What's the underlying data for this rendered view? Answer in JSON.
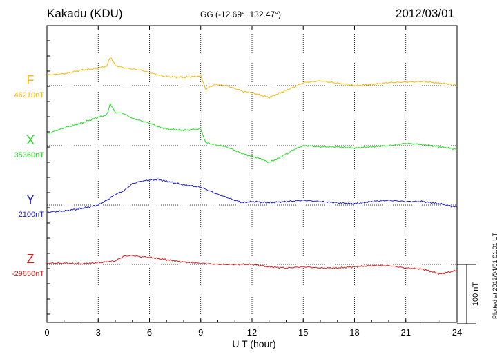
{
  "header": {
    "station": "Kakadu (KDU)",
    "coords": "GG (-12.69°, 132.47°)",
    "date": "2012/03/01"
  },
  "footer": {
    "plotted": "Plotted at 2012/04/01 01:01 UT"
  },
  "chart_data": {
    "type": "line",
    "title": "Kakadu (KDU)",
    "xlabel": "U T (hour)",
    "xlim": [
      0,
      24
    ],
    "xticks": [
      "0",
      "3",
      "6",
      "9",
      "12",
      "15",
      "18",
      "21",
      "24"
    ],
    "grid": true,
    "scale_bar": {
      "label": "100 nT",
      "value": 100
    },
    "series": [
      {
        "name": "F",
        "baseline_label": "46210nT",
        "color": "#f5b50a",
        "points": [
          [
            0,
            18
          ],
          [
            1,
            20
          ],
          [
            2,
            26
          ],
          [
            3,
            29
          ],
          [
            3.5,
            33
          ],
          [
            3.7,
            48
          ],
          [
            4,
            34
          ],
          [
            4.5,
            30
          ],
          [
            5,
            28
          ],
          [
            5.5,
            26
          ],
          [
            6,
            22
          ],
          [
            6.5,
            18
          ],
          [
            7,
            15
          ],
          [
            8,
            14
          ],
          [
            9,
            16
          ],
          [
            9.3,
            -6
          ],
          [
            9.8,
            2
          ],
          [
            10.5,
            0
          ],
          [
            11,
            -5
          ],
          [
            11.5,
            -10
          ],
          [
            12,
            -12
          ],
          [
            12.5,
            -16
          ],
          [
            13,
            -20
          ],
          [
            13.5,
            -14
          ],
          [
            14,
            -8
          ],
          [
            14.5,
            -2
          ],
          [
            15,
            5
          ],
          [
            16,
            8
          ],
          [
            17,
            4
          ],
          [
            18,
            0
          ],
          [
            19,
            2
          ],
          [
            20,
            5
          ],
          [
            21,
            6
          ],
          [
            22,
            7
          ],
          [
            23,
            4
          ],
          [
            23.8,
            2
          ],
          [
            24,
            0
          ]
        ]
      },
      {
        "name": "X",
        "baseline_label": "35360nT",
        "color": "#22dd22",
        "points": [
          [
            0,
            20
          ],
          [
            1,
            30
          ],
          [
            2,
            38
          ],
          [
            3,
            48
          ],
          [
            3.5,
            52
          ],
          [
            3.7,
            70
          ],
          [
            4,
            56
          ],
          [
            4.5,
            54
          ],
          [
            5,
            46
          ],
          [
            5.5,
            42
          ],
          [
            6,
            38
          ],
          [
            6.5,
            32
          ],
          [
            7,
            28
          ],
          [
            8,
            26
          ],
          [
            9,
            28
          ],
          [
            9.3,
            5
          ],
          [
            9.8,
            2
          ],
          [
            10.5,
            -2
          ],
          [
            11,
            -8
          ],
          [
            11.5,
            -14
          ],
          [
            12,
            -18
          ],
          [
            12.5,
            -22
          ],
          [
            13,
            -28
          ],
          [
            13.5,
            -22
          ],
          [
            14,
            -14
          ],
          [
            14.5,
            -6
          ],
          [
            15,
            0
          ],
          [
            16,
            -2
          ],
          [
            17,
            -2
          ],
          [
            18,
            -4
          ],
          [
            19,
            -2
          ],
          [
            20,
            0
          ],
          [
            21,
            4
          ],
          [
            22,
            2
          ],
          [
            23,
            -2
          ],
          [
            24,
            -6
          ]
        ]
      },
      {
        "name": "Y",
        "baseline_label": "2100nT",
        "color": "#1a1acc",
        "points": [
          [
            0,
            -12
          ],
          [
            1,
            -10
          ],
          [
            2,
            -6
          ],
          [
            3,
            0
          ],
          [
            3.5,
            8
          ],
          [
            4,
            18
          ],
          [
            4.5,
            24
          ],
          [
            5,
            36
          ],
          [
            5.5,
            40
          ],
          [
            6,
            42
          ],
          [
            6.5,
            43
          ],
          [
            7,
            40
          ],
          [
            8,
            34
          ],
          [
            9,
            30
          ],
          [
            10,
            18
          ],
          [
            11,
            8
          ],
          [
            11.5,
            4
          ],
          [
            12,
            6
          ],
          [
            13,
            4
          ],
          [
            14,
            6
          ],
          [
            15,
            8
          ],
          [
            16,
            6
          ],
          [
            17,
            4
          ],
          [
            18,
            2
          ],
          [
            19,
            6
          ],
          [
            20,
            8
          ],
          [
            21,
            6
          ],
          [
            22,
            6
          ],
          [
            23,
            2
          ],
          [
            24,
            -4
          ]
        ]
      },
      {
        "name": "Z",
        "baseline_label": "-29650nT",
        "color": "#dd1a1a",
        "points": [
          [
            0,
            2
          ],
          [
            1,
            2
          ],
          [
            2,
            1
          ],
          [
            3,
            3
          ],
          [
            4,
            6
          ],
          [
            4.5,
            14
          ],
          [
            5,
            15
          ],
          [
            5.5,
            13
          ],
          [
            6,
            12
          ],
          [
            7,
            8
          ],
          [
            8,
            4
          ],
          [
            9,
            2
          ],
          [
            10,
            0
          ],
          [
            11,
            0
          ],
          [
            12,
            0
          ],
          [
            13,
            -4
          ],
          [
            14,
            -6
          ],
          [
            15,
            -4
          ],
          [
            16,
            -6
          ],
          [
            17,
            -6
          ],
          [
            18,
            -4
          ],
          [
            19,
            -2
          ],
          [
            20,
            -2
          ],
          [
            21,
            -6
          ],
          [
            22,
            -8
          ],
          [
            23,
            -16
          ],
          [
            24,
            -10
          ]
        ]
      }
    ]
  }
}
